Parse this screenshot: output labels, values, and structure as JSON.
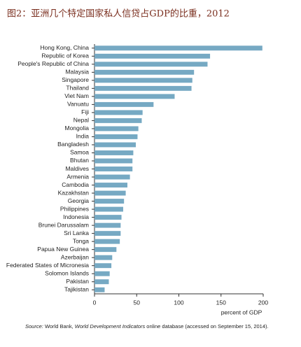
{
  "chart_data": {
    "type": "hbar",
    "title": "图2：亚洲几个特定国家私人信贷占GDP的比重，2012",
    "categories": [
      "Hong Kong, China",
      "Republic of Korea",
      "People's Republic of China",
      "Malaysia",
      "Singapore",
      "Thailand",
      "Viet Nam",
      "Vanuatu",
      "Fiji",
      "Nepal",
      "Mongolia",
      "India",
      "Bangladesh",
      "Samoa",
      "Bhutan",
      "Maldives",
      "Armenia",
      "Cambodia",
      "Kazakhstan",
      "Georgia",
      "Philippines",
      "Indonesia",
      "Brunei Darussalam",
      "Sri Lanka",
      "Tonga",
      "Papua New Guinea",
      "Azerbaijan",
      "Federated States of Micronesia",
      "Solomon Islands",
      "Pakistan",
      "Tajikistan"
    ],
    "values": [
      199,
      137,
      134,
      118,
      116,
      115,
      95,
      70,
      57,
      56,
      52,
      51,
      49,
      46,
      45,
      45,
      42,
      39,
      37,
      35,
      34,
      32,
      31,
      31,
      30,
      26,
      21,
      20,
      18,
      17,
      12
    ],
    "color": "#76a9c3",
    "xlim": [
      0,
      200
    ],
    "xticks": [
      0,
      50,
      100,
      150,
      200
    ],
    "xlabel": "percent of GDP",
    "grid": false,
    "source": {
      "label": "Source:",
      "text1": " World Bank, ",
      "italic": "World Development Indicators",
      "text2": " online database (accessed on September 15, 2014)."
    }
  }
}
